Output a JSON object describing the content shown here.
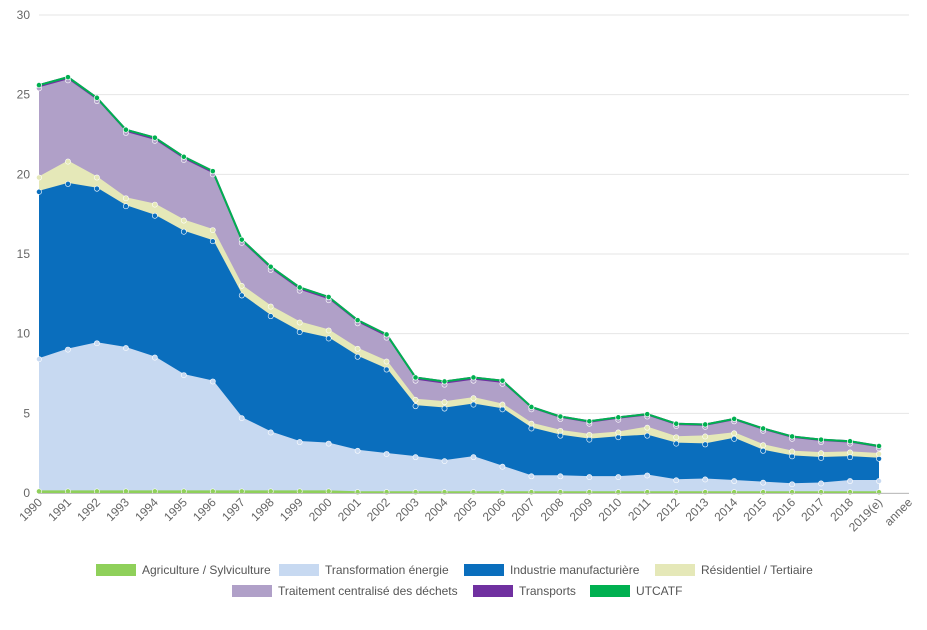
{
  "chart_data": {
    "type": "area",
    "stacked": true,
    "xlabel": "annee",
    "ylabel": "",
    "ylim": [
      0,
      30
    ],
    "yticks": [
      0,
      5,
      10,
      15,
      20,
      25,
      30
    ],
    "grid": true,
    "legend_position": "bottom",
    "categories": [
      "1990",
      "1991",
      "1992",
      "1993",
      "1994",
      "1995",
      "1996",
      "1997",
      "1998",
      "1999",
      "2000",
      "2001",
      "2002",
      "2003",
      "2004",
      "2005",
      "2006",
      "2007",
      "2008",
      "2009",
      "2010",
      "2011",
      "2012",
      "2013",
      "2014",
      "2015",
      "2016",
      "2017",
      "2018",
      "2019(e)"
    ],
    "series": [
      {
        "name": "Agriculture / Sylviculture",
        "color": "#8fd05a",
        "values": [
          0.1,
          0.1,
          0.1,
          0.1,
          0.1,
          0.1,
          0.1,
          0.1,
          0.1,
          0.1,
          0.1,
          0.05,
          0.05,
          0.05,
          0.05,
          0.05,
          0.05,
          0.05,
          0.05,
          0.05,
          0.05,
          0.05,
          0.05,
          0.05,
          0.05,
          0.05,
          0.05,
          0.05,
          0.05,
          0.05
        ]
      },
      {
        "name": "Transformation énergie",
        "color": "#c7d9f1",
        "values": [
          8.3,
          8.9,
          9.3,
          9.0,
          8.4,
          7.3,
          6.9,
          4.6,
          3.7,
          3.1,
          3.0,
          2.6,
          2.4,
          2.2,
          1.95,
          2.2,
          1.6,
          1.0,
          1.0,
          0.95,
          0.95,
          1.05,
          0.75,
          0.8,
          0.7,
          0.6,
          0.5,
          0.55,
          0.7,
          0.7
        ]
      },
      {
        "name": "Industrie manufacturière",
        "color": "#0a6ebd",
        "values": [
          10.5,
          10.4,
          9.7,
          8.9,
          8.9,
          9.0,
          8.8,
          7.7,
          7.3,
          6.9,
          6.6,
          5.9,
          5.3,
          3.2,
          3.3,
          3.3,
          3.6,
          3.0,
          2.55,
          2.35,
          2.5,
          2.5,
          2.3,
          2.2,
          2.65,
          2.0,
          1.75,
          1.6,
          1.5,
          1.4
        ]
      },
      {
        "name": "Résidentiel / Tertiaire",
        "color": "#e5e8b8",
        "values": [
          0.9,
          1.4,
          0.7,
          0.5,
          0.7,
          0.7,
          0.7,
          0.6,
          0.6,
          0.6,
          0.5,
          0.5,
          0.5,
          0.4,
          0.4,
          0.4,
          0.3,
          0.3,
          0.3,
          0.3,
          0.3,
          0.5,
          0.4,
          0.5,
          0.35,
          0.35,
          0.3,
          0.3,
          0.3,
          0.3
        ]
      },
      {
        "name": "Traitement centralisé des déchets",
        "color": "#b0a0c8",
        "values": [
          5.6,
          5.1,
          4.8,
          4.1,
          4.0,
          3.8,
          3.5,
          2.7,
          2.3,
          2.0,
          1.9,
          1.6,
          1.5,
          1.2,
          1.1,
          1.1,
          1.3,
          0.9,
          0.75,
          0.7,
          0.8,
          0.7,
          0.7,
          0.6,
          0.75,
          0.9,
          0.8,
          0.7,
          0.55,
          0.35
        ]
      },
      {
        "name": "Transports",
        "color": "#7030a0",
        "values": [
          0.2,
          0.2,
          0.2,
          0.2,
          0.2,
          0.2,
          0.2,
          0.2,
          0.2,
          0.2,
          0.2,
          0.2,
          0.2,
          0.2,
          0.2,
          0.2,
          0.2,
          0.15,
          0.15,
          0.15,
          0.15,
          0.15,
          0.15,
          0.15,
          0.15,
          0.15,
          0.15,
          0.15,
          0.15,
          0.15
        ]
      },
      {
        "name": "UTCATF",
        "color": "#00b050",
        "values": [
          0,
          0,
          0,
          0,
          0,
          0,
          0,
          0,
          0,
          0,
          0,
          0,
          0,
          0,
          0,
          0,
          0,
          0,
          0,
          0,
          0,
          0,
          0,
          0,
          0,
          0,
          0,
          0,
          0,
          0
        ]
      }
    ]
  }
}
